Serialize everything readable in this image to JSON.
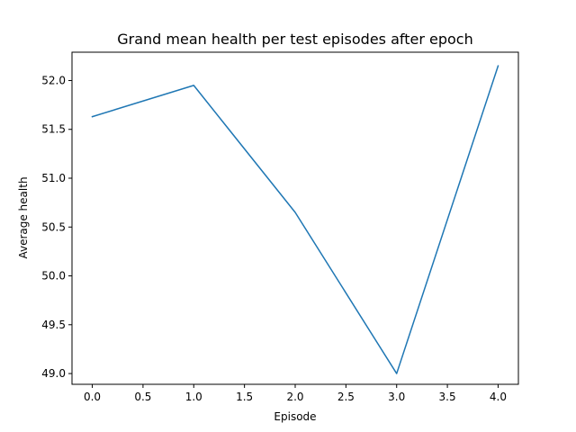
{
  "chart_data": {
    "type": "line",
    "title": "Grand mean health per test episodes after epoch",
    "xlabel": "Episode",
    "ylabel": "Average health",
    "x": [
      0,
      1,
      2,
      3,
      4
    ],
    "series": [
      {
        "values": [
          51.63,
          51.95,
          50.65,
          49.0,
          52.15
        ],
        "color": "#1f77b4"
      }
    ],
    "xlim": [
      -0.2,
      4.2
    ],
    "ylim": [
      48.89,
      52.29
    ],
    "xticks": [
      0.0,
      0.5,
      1.0,
      1.5,
      2.0,
      2.5,
      3.0,
      3.5,
      4.0
    ],
    "xtick_labels": [
      "0.0",
      "0.5",
      "1.0",
      "1.5",
      "2.0",
      "2.5",
      "3.0",
      "3.5",
      "4.0"
    ],
    "yticks": [
      49.0,
      49.5,
      50.0,
      50.5,
      51.0,
      51.5,
      52.0
    ],
    "ytick_labels": [
      "49.0",
      "49.5",
      "50.0",
      "50.5",
      "51.0",
      "51.5",
      "52.0"
    ],
    "grid": false,
    "legend": "none"
  }
}
